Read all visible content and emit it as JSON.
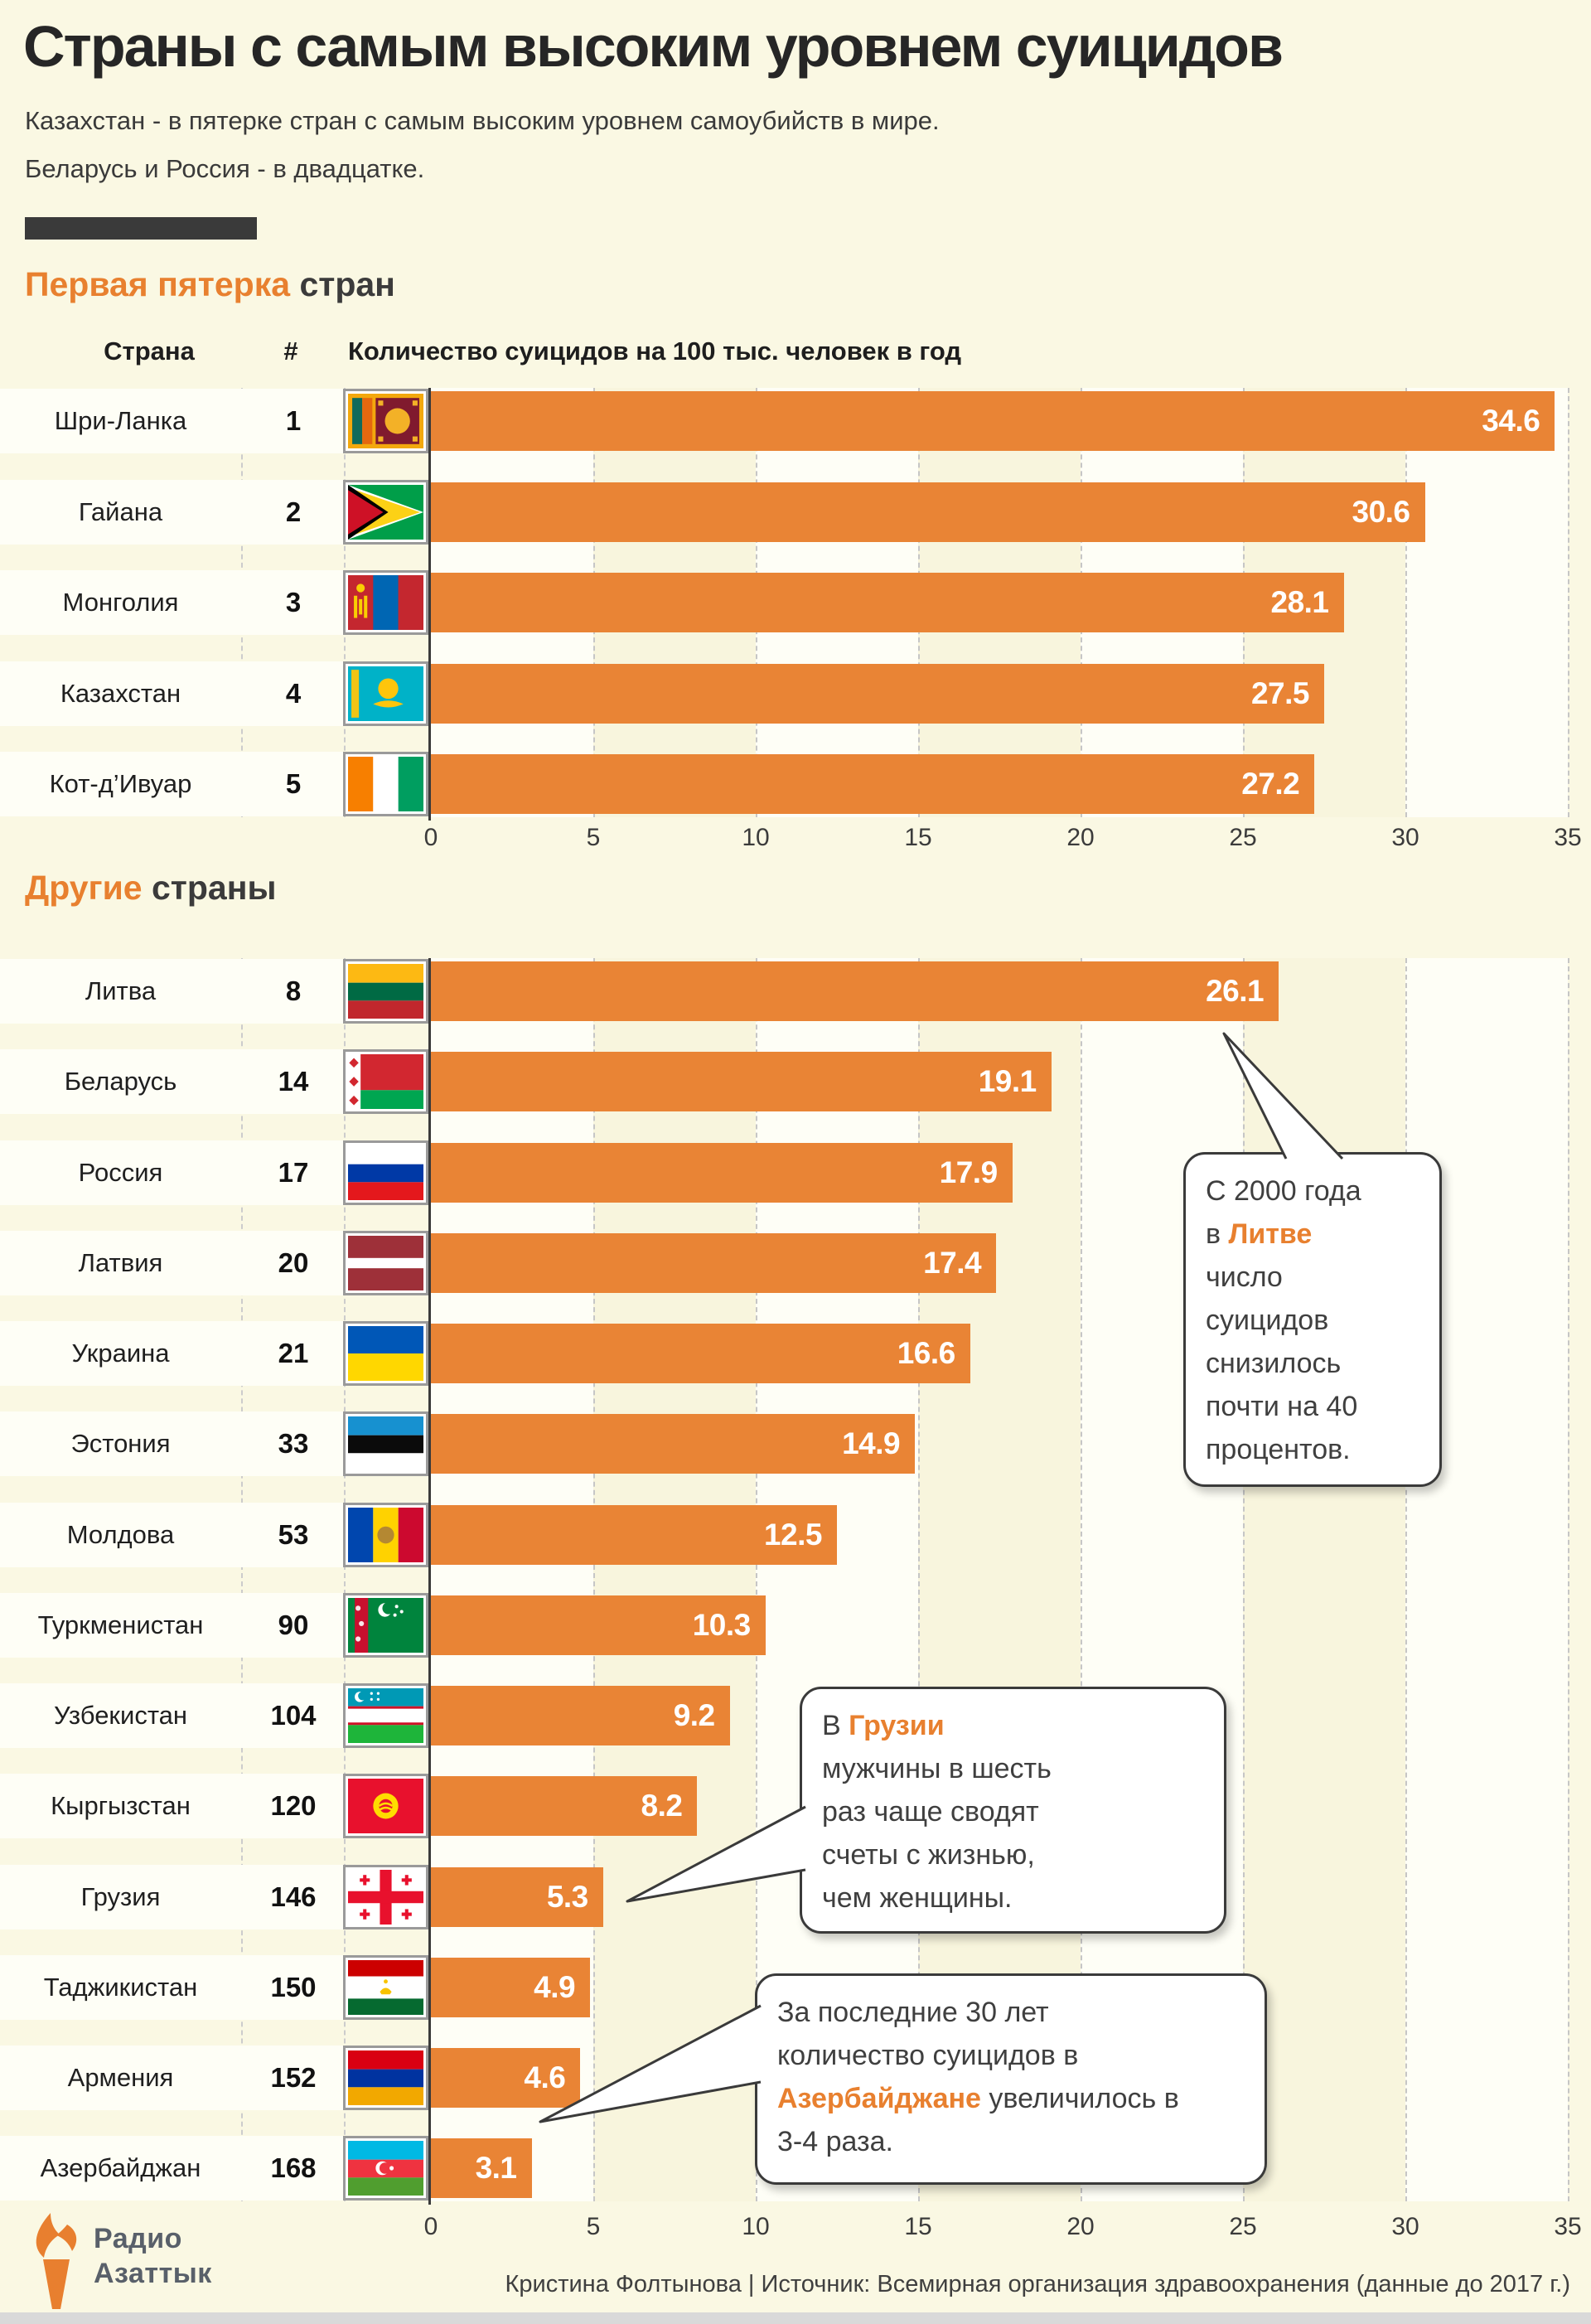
{
  "page": {
    "title": "Страны с самым высоким уровнем суицидов",
    "subtitle_line1": "Казахстан - в пятерке стран с самым высоким уровнем самоубийств в мире.",
    "subtitle_line2": "Беларусь и Россия - в двадцатке.",
    "footer_credit": "Кристина Фолтынова | Источник: Всемирная организация здравоохранения (данные до 2017 г.)",
    "logo_line1": "Радио",
    "logo_line2": "Азаттык"
  },
  "colors": {
    "background": "#FAF8E3",
    "bar_orange": "#E98435",
    "accent_orange": "#E8802F",
    "dark": "#3A3A3A",
    "stripe_white": "#FEFEF6",
    "stripe_cream": "#F8F5DD",
    "logo_gray": "#59606A"
  },
  "sections": [
    {
      "title_accent": "Первая пятерка",
      "title_rest": " стран"
    },
    {
      "title_accent": "Другие",
      "title_rest": " страны"
    }
  ],
  "table_headers": {
    "country": "Страна",
    "rank": "#",
    "measure": "Количество суицидов на 100 тыс. человек в год"
  },
  "chart_data": [
    {
      "type": "bar",
      "title": "Первая пятерка стран",
      "xlabel": "Количество суицидов на 100 тыс. человек в год",
      "xlim": [
        0,
        35
      ],
      "ticks": [
        0,
        5,
        10,
        15,
        20,
        25,
        30,
        35
      ],
      "grid": "dashed",
      "rows": [
        {
          "country": "Шри-Ланка",
          "rank": "1",
          "value": 34.6,
          "label": "34.6",
          "flag": "lk"
        },
        {
          "country": "Гайана",
          "rank": "2",
          "value": 30.6,
          "label": "30.6",
          "flag": "gy"
        },
        {
          "country": "Монголия",
          "rank": "3",
          "value": 28.1,
          "label": "28.1",
          "flag": "mn"
        },
        {
          "country": "Казахстан",
          "rank": "4",
          "value": 27.5,
          "label": "27.5",
          "flag": "kz"
        },
        {
          "country": "Кот-д’Ивуар",
          "rank": "5",
          "value": 27.2,
          "label": "27.2",
          "flag": "ci"
        }
      ]
    },
    {
      "type": "bar",
      "title": "Другие страны",
      "xlim": [
        0,
        35
      ],
      "ticks": [
        0,
        5,
        10,
        15,
        20,
        25,
        30,
        35
      ],
      "grid": "dashed",
      "rows": [
        {
          "country": "Литва",
          "rank": "8",
          "value": 26.1,
          "label": "26.1",
          "flag": "lt"
        },
        {
          "country": "Беларусь",
          "rank": "14",
          "value": 19.1,
          "label": "19.1",
          "flag": "by"
        },
        {
          "country": "Россия",
          "rank": "17",
          "value": 17.9,
          "label": "17.9",
          "flag": "ru"
        },
        {
          "country": "Латвия",
          "rank": "20",
          "value": 17.4,
          "label": "17.4",
          "flag": "lv"
        },
        {
          "country": "Украина",
          "rank": "21",
          "value": 16.6,
          "label": "16.6",
          "flag": "ua"
        },
        {
          "country": "Эстония",
          "rank": "33",
          "value": 14.9,
          "label": "14.9",
          "flag": "ee"
        },
        {
          "country": "Молдова",
          "rank": "53",
          "value": 12.5,
          "label": "12.5",
          "flag": "md"
        },
        {
          "country": "Туркменистан",
          "rank": "90",
          "value": 10.3,
          "label": "10.3",
          "flag": "tm"
        },
        {
          "country": "Узбекистан",
          "rank": "104",
          "value": 9.2,
          "label": "9.2",
          "flag": "uz"
        },
        {
          "country": "Кыргызстан",
          "rank": "120",
          "value": 8.2,
          "label": "8.2",
          "flag": "kg"
        },
        {
          "country": "Грузия",
          "rank": "146",
          "value": 5.3,
          "label": "5.3",
          "flag": "ge"
        },
        {
          "country": "Таджикистан",
          "rank": "150",
          "value": 4.9,
          "label": "4.9",
          "flag": "tj"
        },
        {
          "country": "Армения",
          "rank": "152",
          "value": 4.6,
          "label": "4.6",
          "flag": "am"
        },
        {
          "country": "Азербайджан",
          "rank": "168",
          "value": 3.1,
          "label": "3.1",
          "flag": "az"
        }
      ]
    }
  ],
  "callouts": [
    {
      "lines": [
        {
          "parts": [
            {
              "t": "С 2000 года"
            }
          ]
        },
        {
          "parts": [
            {
              "t": "в "
            },
            {
              "t": "Литве",
              "hl": true
            }
          ]
        },
        {
          "parts": [
            {
              "t": "число"
            }
          ]
        },
        {
          "parts": [
            {
              "t": "суицидов"
            }
          ]
        },
        {
          "parts": [
            {
              "t": "снизилось"
            }
          ]
        },
        {
          "parts": [
            {
              "t": "почти на 40"
            }
          ]
        },
        {
          "parts": [
            {
              "t": "процентов."
            }
          ]
        }
      ]
    },
    {
      "lines": [
        {
          "parts": [
            {
              "t": "В "
            },
            {
              "t": "Грузии",
              "hl": true
            }
          ]
        },
        {
          "parts": [
            {
              "t": "мужчины в шесть"
            }
          ]
        },
        {
          "parts": [
            {
              "t": "раз чаще сводят"
            }
          ]
        },
        {
          "parts": [
            {
              "t": "счеты с жизнью,"
            }
          ]
        },
        {
          "parts": [
            {
              "t": "чем женщины."
            }
          ]
        }
      ]
    },
    {
      "lines": [
        {
          "parts": [
            {
              "t": "За последние 30 лет"
            }
          ]
        },
        {
          "parts": [
            {
              "t": "количество суицидов в"
            }
          ]
        },
        {
          "parts": [
            {
              "t": "Азербайджане",
              "hl": true
            },
            {
              "t": " увеличилось в"
            }
          ]
        },
        {
          "parts": [
            {
              "t": "3-4 раза."
            }
          ]
        }
      ]
    }
  ]
}
